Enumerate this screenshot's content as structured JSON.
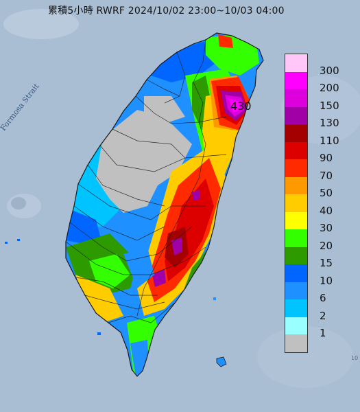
{
  "title": "累積5小時 RWRF 2024/10/02 23:00~10/03 04:00",
  "strait_label": "Formosa Strait",
  "max_value": "430",
  "corner_mark": "10",
  "legend": {
    "levels": [
      "300",
      "200",
      "150",
      "130",
      "110",
      "90",
      "70",
      "50",
      "40",
      "30",
      "20",
      "15",
      "10",
      "6",
      "2",
      "1",
      ""
    ],
    "colors": [
      "#ffc6f7",
      "#ff00ff",
      "#dd00dd",
      "#a000a6",
      "#a50000",
      "#dd0000",
      "#ff2a00",
      "#ff9900",
      "#ffcc00",
      "#ffff00",
      "#33ff00",
      "#2d9a00",
      "#0066ff",
      "#1e90ff",
      "#00c4ff",
      "#99ffff",
      "#c0c0c0"
    ]
  },
  "colors": {
    "sea": "#a9bdd3",
    "land_no_rain": "#c0c0c0",
    "border": "#1a1a1a"
  }
}
